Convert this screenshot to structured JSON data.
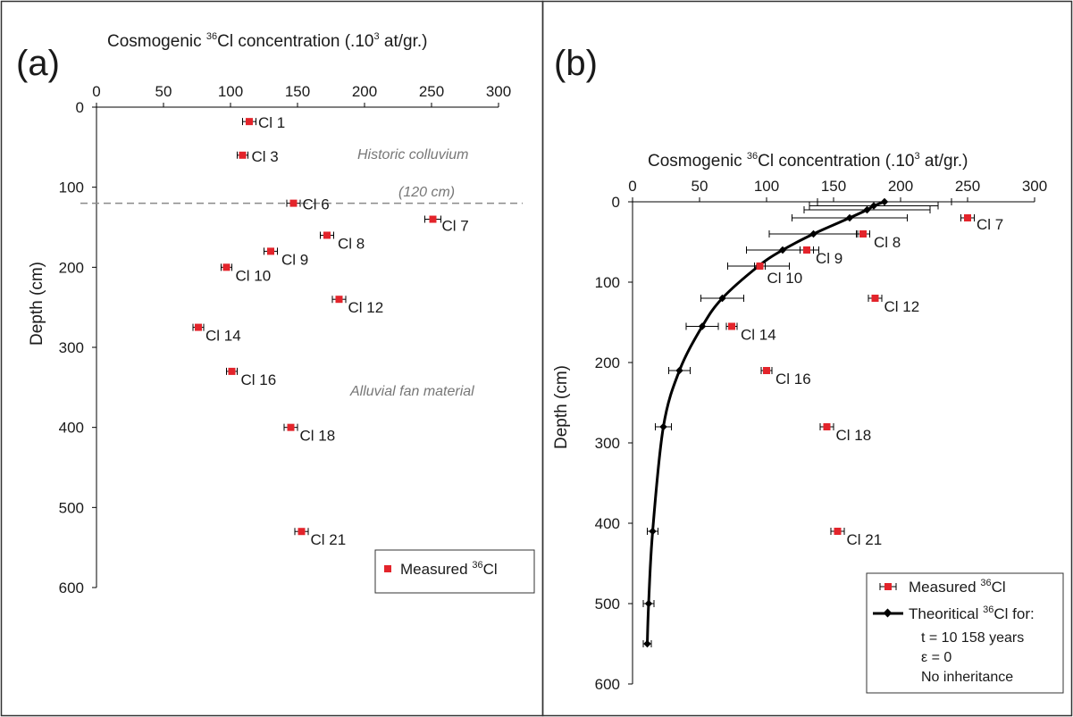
{
  "colors": {
    "measured": "#e3242b",
    "theoretical": "#000000",
    "frame": "#333333",
    "annotation": "#777777"
  },
  "chart_data": [
    {
      "type": "scatter",
      "panel_label": "(a)",
      "xlabel_pre": "Cosmogenic ",
      "xlabel_sup": "36",
      "xlabel_mid": "Cl concentration (.10",
      "xlabel_sup2": "3",
      "xlabel_post": " at/gr.)",
      "ylabel": "Depth (cm)",
      "xlim": [
        0,
        300
      ],
      "ylim": [
        0,
        600
      ],
      "xticks": [
        "0",
        "50",
        "100",
        "150",
        "200",
        "250",
        "300"
      ],
      "yticks": [
        "0",
        "100",
        "200",
        "300",
        "400",
        "500",
        "600"
      ],
      "grid": false,
      "legend": {
        "placement": "bottom-right",
        "label": "Measured ",
        "label_sup": "36",
        "label_post": "Cl"
      },
      "annotations": {
        "colluvium": "Historic colluvium",
        "boundary": "(120 cm)",
        "fan": "Alluvial fan material"
      },
      "boundary_depth": 120,
      "series": [
        {
          "name": "Measured 36Cl",
          "points": [
            {
              "label": "Cl 1",
              "x": 114,
              "y": 18,
              "err": 5
            },
            {
              "label": "Cl 3",
              "x": 109,
              "y": 60,
              "err": 4
            },
            {
              "label": "Cl 6",
              "x": 147,
              "y": 120,
              "err": 5
            },
            {
              "label": "Cl 7",
              "x": 251,
              "y": 140,
              "err": 6
            },
            {
              "label": "Cl 8",
              "x": 172,
              "y": 160,
              "err": 5
            },
            {
              "label": "Cl 9",
              "x": 130,
              "y": 180,
              "err": 5
            },
            {
              "label": "Cl 10",
              "x": 97,
              "y": 200,
              "err": 4
            },
            {
              "label": "Cl 12",
              "x": 181,
              "y": 240,
              "err": 5
            },
            {
              "label": "Cl 14",
              "x": 76,
              "y": 275,
              "err": 4
            },
            {
              "label": "Cl 16",
              "x": 101,
              "y": 330,
              "err": 4
            },
            {
              "label": "Cl 18",
              "x": 145,
              "y": 400,
              "err": 5
            },
            {
              "label": "Cl 21",
              "x": 153,
              "y": 530,
              "err": 5
            }
          ]
        }
      ]
    },
    {
      "type": "scatter",
      "panel_label": "(b)",
      "xlabel_pre": "Cosmogenic ",
      "xlabel_sup": "36",
      "xlabel_mid": "Cl concentration (.10",
      "xlabel_sup2": "3",
      "xlabel_post": " at/gr.)",
      "ylabel": "Depth (cm)",
      "xlim": [
        0,
        300
      ],
      "ylim": [
        0,
        600
      ],
      "xticks": [
        "0",
        "50",
        "100",
        "150",
        "200",
        "250",
        "300"
      ],
      "yticks": [
        "0",
        "100",
        "200",
        "300",
        "400",
        "500",
        "600"
      ],
      "grid": false,
      "legend": {
        "placement": "bottom-right",
        "measured": "Measured ",
        "measured_sup": "36",
        "measured_post": "Cl",
        "theoretical": "Theoritical ",
        "theoretical_sup": "36",
        "theoretical_post": "Cl for:",
        "line1": "t = 10 158 years",
        "line2": "ε = 0",
        "line3": "No inheritance"
      },
      "series": [
        {
          "name": "Measured 36Cl",
          "points": [
            {
              "label": "Cl 7",
              "x": 250,
              "y": 20,
              "err": 5
            },
            {
              "label": "Cl 8",
              "x": 172,
              "y": 40,
              "err": 5
            },
            {
              "label": "Cl 9",
              "x": 130,
              "y": 60,
              "err": 5
            },
            {
              "label": "Cl 10",
              "x": 95,
              "y": 80,
              "err": 4
            },
            {
              "label": "Cl 12",
              "x": 181,
              "y": 120,
              "err": 5
            },
            {
              "label": "Cl 14",
              "x": 74,
              "y": 155,
              "err": 4
            },
            {
              "label": "Cl 16",
              "x": 100,
              "y": 210,
              "err": 4
            },
            {
              "label": "Cl 18",
              "x": 145,
              "y": 280,
              "err": 5
            },
            {
              "label": "Cl 21",
              "x": 153,
              "y": 410,
              "err": 5
            }
          ]
        },
        {
          "name": "Theoritical 36Cl",
          "points": [
            {
              "x": 188,
              "y": 0,
              "err": 50
            },
            {
              "x": 180,
              "y": 5,
              "err": 48
            },
            {
              "x": 175,
              "y": 10,
              "err": 47
            },
            {
              "x": 162,
              "y": 20,
              "err": 43
            },
            {
              "x": 135,
              "y": 40,
              "err": 33
            },
            {
              "x": 112,
              "y": 60,
              "err": 27
            },
            {
              "x": 94,
              "y": 80,
              "err": 23
            },
            {
              "x": 67,
              "y": 120,
              "err": 16
            },
            {
              "x": 52,
              "y": 155,
              "err": 12
            },
            {
              "x": 35,
              "y": 210,
              "err": 8
            },
            {
              "x": 23,
              "y": 280,
              "err": 6
            },
            {
              "x": 15,
              "y": 410,
              "err": 4
            },
            {
              "x": 12,
              "y": 500,
              "err": 4
            },
            {
              "x": 11,
              "y": 550,
              "err": 3
            }
          ]
        }
      ]
    }
  ]
}
